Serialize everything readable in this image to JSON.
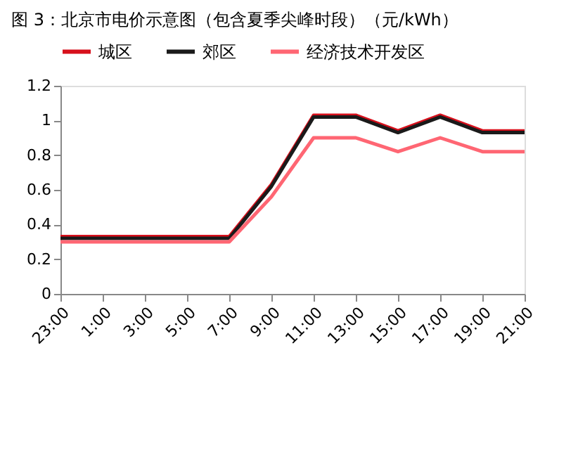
{
  "chart_data": {
    "type": "line",
    "title": "图 3：北京市电价示意图（包含夏季尖峰时段）（元/kWh）",
    "categories": [
      "23:00",
      "1:00",
      "3:00",
      "5:00",
      "7:00",
      "9:00",
      "11:00",
      "13:00",
      "15:00",
      "17:00",
      "19:00",
      "21:00"
    ],
    "series": [
      {
        "name": "城区",
        "color": "#d7101c",
        "values": [
          0.33,
          0.33,
          0.33,
          0.33,
          0.33,
          0.63,
          1.03,
          1.03,
          0.94,
          1.03,
          0.94,
          0.94
        ]
      },
      {
        "name": "郊区",
        "color": "#1a1a1a",
        "values": [
          0.32,
          0.32,
          0.32,
          0.32,
          0.32,
          0.62,
          1.02,
          1.02,
          0.93,
          1.02,
          0.93,
          0.93
        ]
      },
      {
        "name": "经济技术开发区",
        "color": "#ff6673",
        "values": [
          0.3,
          0.3,
          0.3,
          0.3,
          0.3,
          0.56,
          0.9,
          0.9,
          0.82,
          0.9,
          0.82,
          0.82
        ]
      }
    ],
    "ylim": [
      0,
      1.2
    ],
    "yticks": [
      0,
      0.2,
      0.4,
      0.6,
      0.8,
      1,
      1.2
    ],
    "grid": false,
    "legend": "top",
    "marker": "none",
    "line_style": "solid"
  }
}
